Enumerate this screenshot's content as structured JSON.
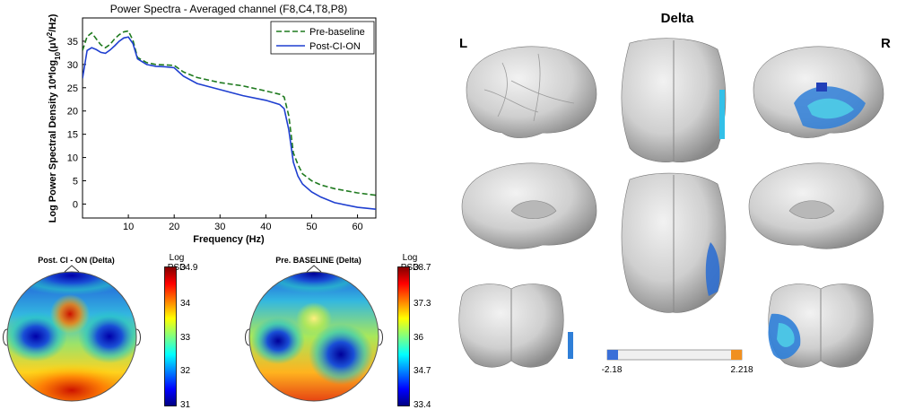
{
  "chart_data": [
    {
      "type": "line",
      "title": "Power Spectra - Averaged channel (F8,C4,T8,P8)",
      "xlabel": "Frequency (Hz)",
      "ylabel": "Log Power Spectral Density 10*log10(μV²/Hz)",
      "xlim": [
        0,
        64
      ],
      "ylim": [
        -3,
        40
      ],
      "xticks": [
        10,
        20,
        30,
        40,
        50,
        60
      ],
      "yticks": [
        0,
        5,
        10,
        15,
        20,
        25,
        30,
        35
      ],
      "legend": "top-right",
      "series": [
        {
          "name": "Pre-baseline",
          "color": "#1f7a1f",
          "style": "dashed",
          "x": [
            0,
            1,
            2,
            3,
            4,
            5,
            6,
            7,
            8,
            9,
            10,
            11,
            12,
            14,
            16,
            18,
            20,
            22,
            25,
            30,
            35,
            40,
            43,
            44,
            45,
            46,
            47,
            48,
            50,
            52,
            55,
            60,
            64
          ],
          "y": [
            33,
            36,
            36.8,
            35.5,
            34.2,
            33.6,
            34.3,
            35.5,
            36.4,
            37,
            37.2,
            35.2,
            31.5,
            30.4,
            30,
            29.9,
            29.8,
            28.4,
            27.2,
            26.1,
            25.4,
            24.3,
            23.6,
            23,
            19,
            11,
            8.5,
            6.5,
            5,
            4.1,
            3.3,
            2.4,
            1.9
          ]
        },
        {
          "name": "Post-CI-ON",
          "color": "#1f3fd0",
          "style": "solid",
          "x": [
            0,
            1,
            2,
            3,
            4,
            5,
            6,
            7,
            8,
            9,
            10,
            11,
            12,
            14,
            16,
            18,
            20,
            22,
            25,
            30,
            35,
            40,
            43,
            44,
            45,
            46,
            47,
            48,
            50,
            52,
            55,
            60,
            64
          ],
          "y": [
            27,
            33,
            33.6,
            33.2,
            32.6,
            32.4,
            33.1,
            34,
            35,
            35.7,
            35.9,
            34.5,
            31.2,
            30,
            29.6,
            29.5,
            29.3,
            27.5,
            25.9,
            24.6,
            23.3,
            22.3,
            21.4,
            20.5,
            16,
            9,
            6,
            4.3,
            2.6,
            1.5,
            0.3,
            -0.7,
            -1.1
          ]
        }
      ]
    },
    {
      "type": "heatmap",
      "title": "Post. CI - ON (Delta)",
      "colorbar_label": "Log PSD",
      "colorbar_ticks": [
        "34.9",
        "34",
        "33",
        "32",
        "31"
      ]
    },
    {
      "type": "heatmap",
      "title": "Pre. BASELINE (Delta)",
      "colorbar_label": "Log PSD",
      "colorbar_ticks": [
        "38.7",
        "37.3",
        "36",
        "34.7",
        "33.4"
      ]
    },
    {
      "type": "heatmap",
      "title": "Delta",
      "side_labels": [
        "L",
        "R"
      ],
      "colorbar_ticks": [
        "-2.18",
        "2.218"
      ]
    }
  ]
}
